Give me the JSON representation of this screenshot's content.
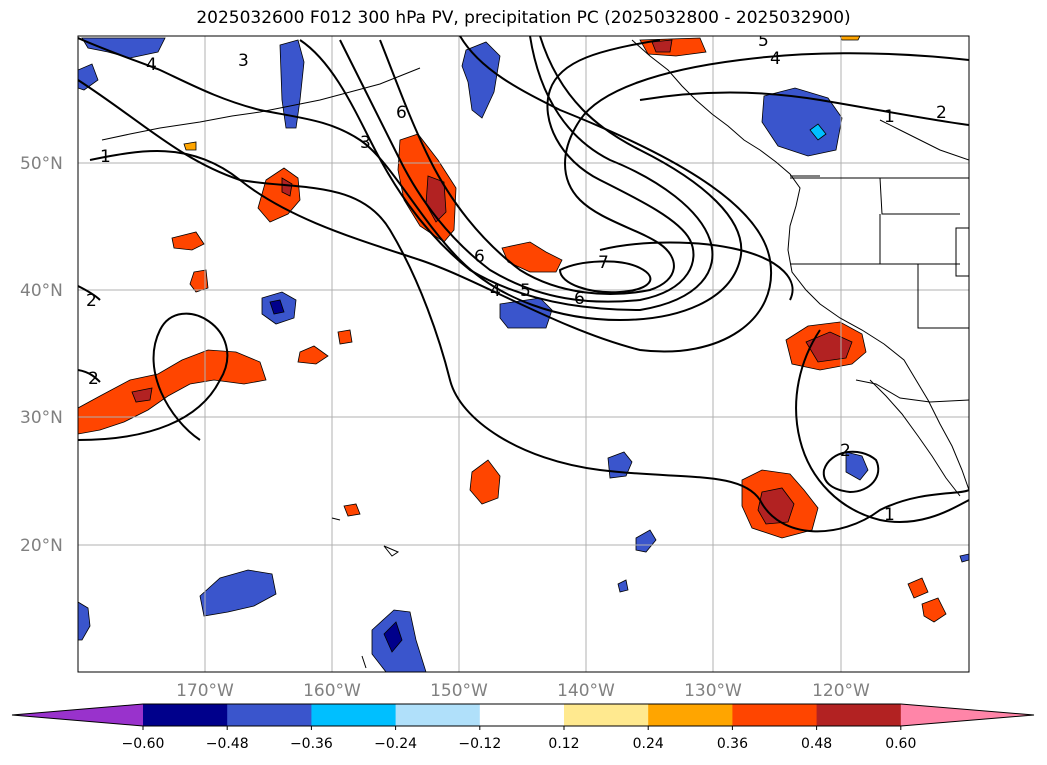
{
  "title": "2025032600 F012 300 hPa PV, precipitation PC (2025032800 - 2025032900)",
  "lat_labels": [
    "50°N",
    "40°N",
    "30°N",
    "20°N"
  ],
  "lon_labels": [
    "170°W",
    "160°W",
    "150°W",
    "140°W",
    "130°W",
    "120°W"
  ],
  "pv_contour_labels": [
    "1",
    "1",
    "1",
    "2",
    "2",
    "2",
    "2",
    "3",
    "3",
    "4",
    "4",
    "4",
    "5",
    "5",
    "6",
    "6",
    "6",
    "7"
  ],
  "colorbar": {
    "tick_labels": [
      "−0.60",
      "−0.48",
      "−0.36",
      "−0.24",
      "−0.12",
      "0.12",
      "0.24",
      "0.36",
      "0.48",
      "0.60"
    ],
    "colors": [
      "#9932cc",
      "#00008b",
      "#3a55cc",
      "#00bfff",
      "#b0e0fa",
      "#ffffff",
      "#ffe98f",
      "#ffa500",
      "#ff4500",
      "#b22222",
      "#ff85a8"
    ]
  }
}
